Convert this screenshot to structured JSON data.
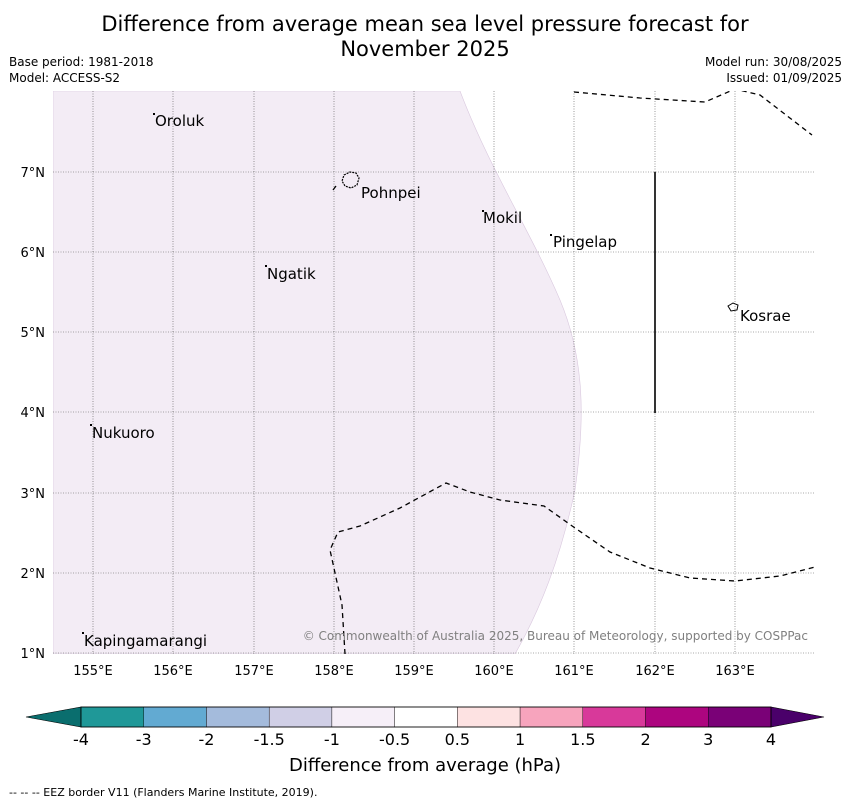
{
  "header": {
    "title_line1": "Difference from average mean sea level pressure forecast for",
    "title_line2": "November 2025",
    "base_period": "Base period: 1981-2018",
    "model": "Model: ACCESS-S2",
    "model_run": "Model run: 30/08/2025",
    "issued": "Issued: 01/09/2025"
  },
  "map": {
    "lon_ticks": [
      "155°E",
      "156°E",
      "157°E",
      "158°E",
      "159°E",
      "160°E",
      "161°E",
      "162°E",
      "163°E"
    ],
    "lat_ticks": [
      "7°N",
      "6°N",
      "5°N",
      "4°N",
      "3°N",
      "2°N",
      "1°N"
    ],
    "places": [
      {
        "name": "Oroluk"
      },
      {
        "name": "Pohnpei"
      },
      {
        "name": "Mokil"
      },
      {
        "name": "Pingelap"
      },
      {
        "name": "Ngatik"
      },
      {
        "name": "Kosrae"
      },
      {
        "name": "Nukuoro"
      },
      {
        "name": "Kapingamarangi"
      }
    ],
    "shaded_region_class": "-1 to -0.5",
    "shaded_color": "#f3ecf5",
    "copyright": "© Commonwealth of Australia 2025, Bureau of Meteorology, supported by COSPPac"
  },
  "colorbar": {
    "label": "Difference from average (hPa)",
    "tick_labels": [
      "-4",
      "-3",
      "-2",
      "-1.5",
      "-1",
      "-0.5",
      "0.5",
      "1",
      "1.5",
      "2",
      "3",
      "4"
    ],
    "colors": [
      "#0a6e6e",
      "#1f9898",
      "#62aad2",
      "#a4bbdc",
      "#d0cfe6",
      "#f6eff8",
      "#ffffff",
      "#fde2e2",
      "#f7a4bd",
      "#d8399a",
      "#ad057f",
      "#7a0177",
      "#4a006a"
    ]
  },
  "footer": {
    "legend": "--  --  -- EEZ border V11 (Flanders Marine Institute, 2019)."
  }
}
